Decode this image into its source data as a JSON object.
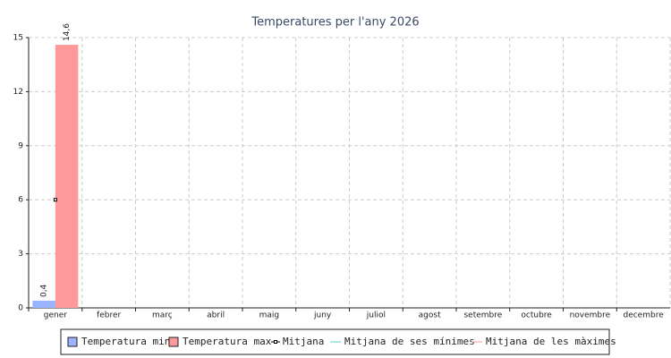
{
  "chart_data": {
    "type": "bar",
    "title": "Temperatures per l'any 2026",
    "categories": [
      "gener",
      "febrer",
      "març",
      "abril",
      "maig",
      "juny",
      "juliol",
      "agost",
      "setembre",
      "octubre",
      "novembre",
      "decembre"
    ],
    "series": [
      {
        "name": "Temperatura min",
        "color": "#99b3ff",
        "mark": "bar",
        "values": [
          0.4,
          null,
          null,
          null,
          null,
          null,
          null,
          null,
          null,
          null,
          null,
          null
        ],
        "value_labels": [
          "0,4",
          null,
          null,
          null,
          null,
          null,
          null,
          null,
          null,
          null,
          null,
          null
        ]
      },
      {
        "name": "Temperatura max",
        "color": "#ff9999",
        "mark": "bar",
        "values": [
          14.6,
          null,
          null,
          null,
          null,
          null,
          null,
          null,
          null,
          null,
          null,
          null
        ],
        "value_labels": [
          "14,6",
          null,
          null,
          null,
          null,
          null,
          null,
          null,
          null,
          null,
          null,
          null
        ]
      },
      {
        "name": "Mitjana",
        "color": "#000000",
        "mark": "point",
        "values": [
          6,
          null,
          null,
          null,
          null,
          null,
          null,
          null,
          null,
          null,
          null,
          null
        ]
      },
      {
        "name": "Mitjana de ses mínimes",
        "color": "#66cccc",
        "mark": "line",
        "values": [
          null,
          null,
          null,
          null,
          null,
          null,
          null,
          null,
          null,
          null,
          null,
          null
        ]
      },
      {
        "name": "Mitjana de les màximes",
        "color": "#ff9999",
        "mark": "line",
        "values": [
          null,
          null,
          null,
          null,
          null,
          null,
          null,
          null,
          null,
          null,
          null,
          null
        ]
      }
    ],
    "ylim": [
      0,
      15
    ],
    "yticks": [
      0,
      3,
      6,
      9,
      12,
      15
    ],
    "grid": true
  }
}
